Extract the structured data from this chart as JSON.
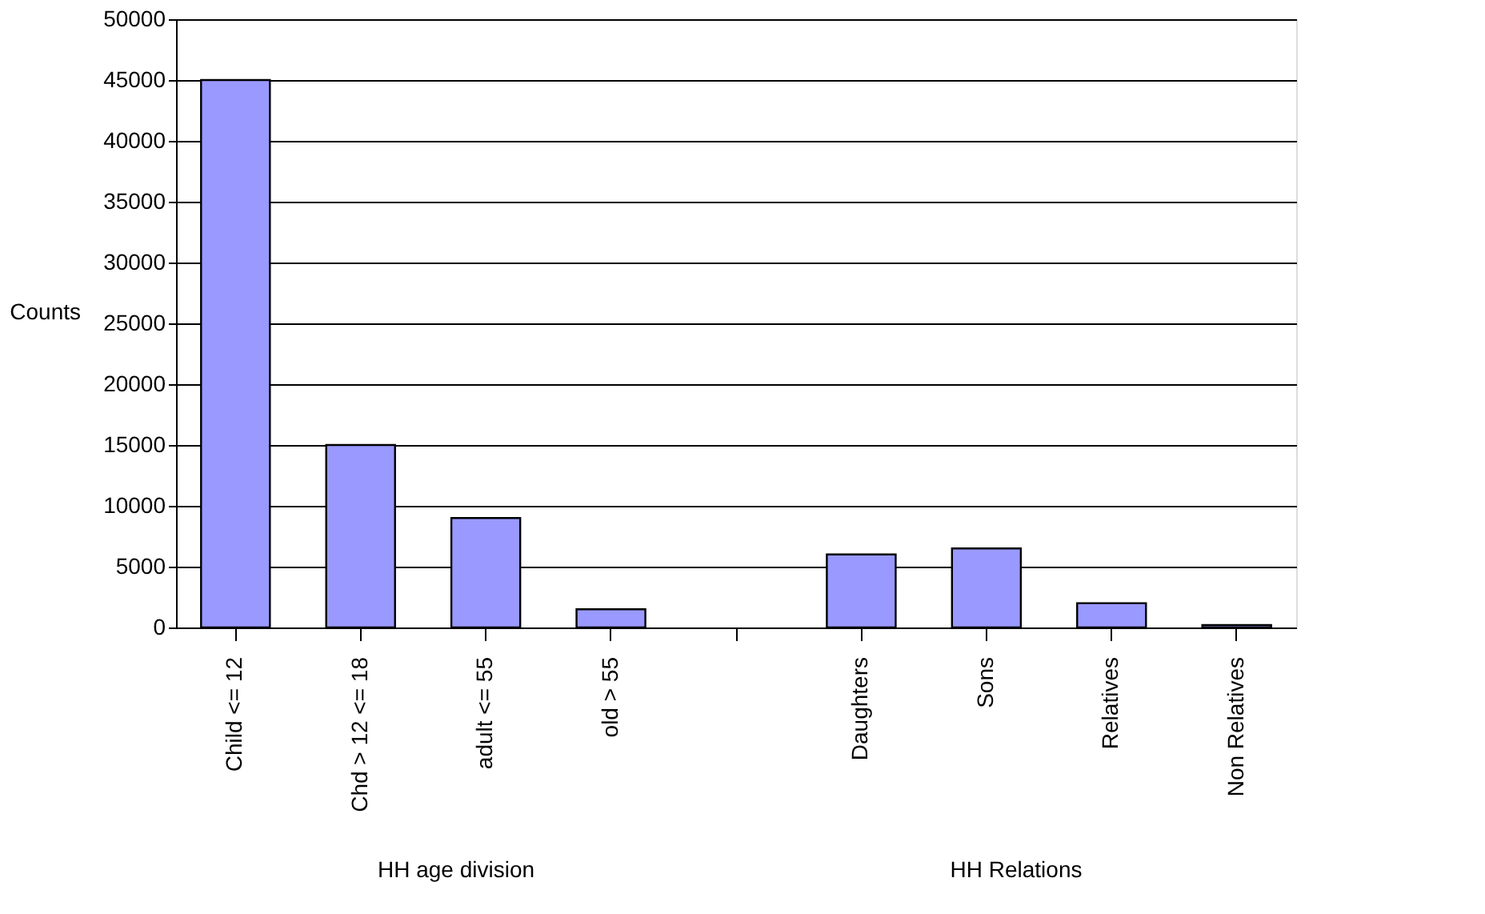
{
  "chart_data": {
    "type": "bar",
    "ylabel": "Counts",
    "categories": [
      "Child <= 12",
      "Chd > 12 <= 18",
      "adult <= 55",
      "old > 55",
      null,
      "Daughters",
      "Sons",
      "Relatives",
      "Non Relatives"
    ],
    "values": [
      45000,
      15000,
      9000,
      1500,
      null,
      6000,
      6500,
      2000,
      200
    ],
    "color": "#9999ff",
    "ylim": [
      0,
      50000
    ],
    "yticks": [
      0,
      5000,
      10000,
      15000,
      20000,
      25000,
      30000,
      35000,
      40000,
      45000,
      50000
    ],
    "grid": "y",
    "annotations": [
      "HH age division",
      "HH Relations"
    ]
  }
}
